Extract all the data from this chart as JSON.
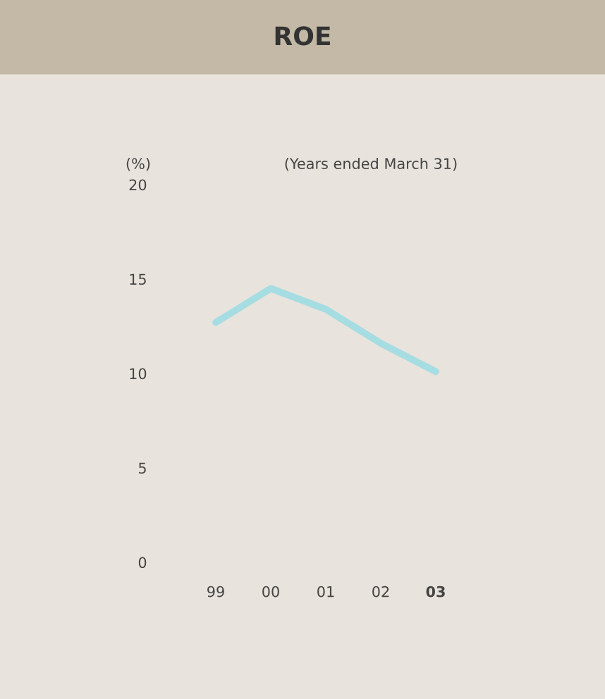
{
  "chart_data": {
    "type": "line",
    "title": "ROE",
    "ylabel": "(%)",
    "annotations": [
      "(Years ended March 31)"
    ],
    "categories": [
      "99",
      "00",
      "01",
      "02",
      "03"
    ],
    "series": [
      {
        "color": "#a6dde2",
        "values": [
          12.7,
          14.5,
          13.4,
          11.6,
          10.1
        ]
      }
    ],
    "ylim": [
      0,
      20
    ],
    "yticks": [
      0,
      5,
      10,
      15,
      20
    ],
    "grid": false,
    "legend": false,
    "marker": "none",
    "line_style": "solid"
  }
}
